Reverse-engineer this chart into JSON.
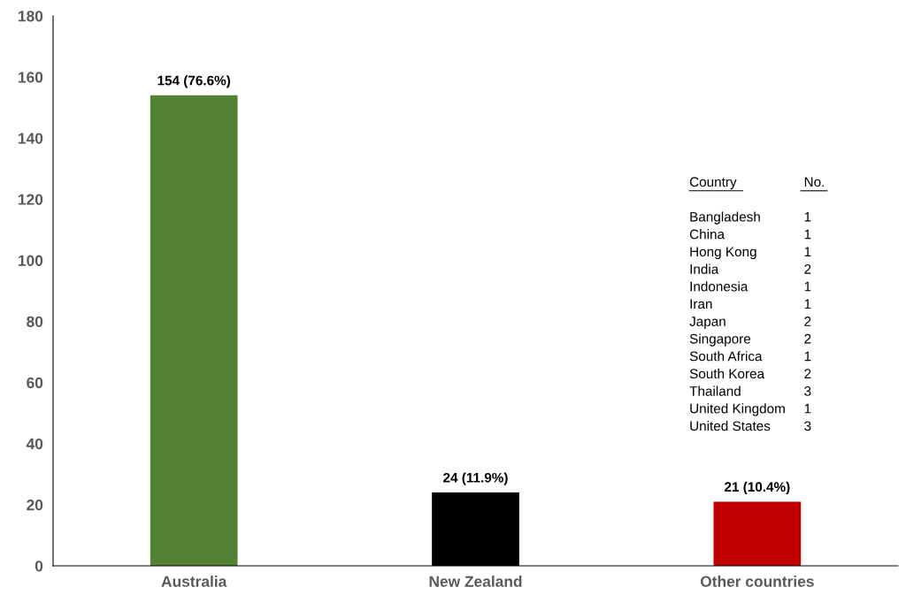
{
  "chart_data": {
    "type": "bar",
    "categories": [
      "Australia",
      "New Zealand",
      "Other countries"
    ],
    "values": [
      154,
      24,
      21
    ],
    "colors": [
      "#548235",
      "#000000",
      "#c00000"
    ],
    "value_labels": [
      "154 (76.6%)",
      "24 (11.9%)",
      "21 (10.4%)"
    ],
    "ylim": [
      0,
      180
    ],
    "yticks": [
      0,
      20,
      40,
      60,
      80,
      100,
      120,
      140,
      160,
      180
    ],
    "grid": false,
    "legend": false,
    "annotations": [
      "Country No.",
      "Bangladesh 1",
      "China 1",
      "Hong Kong 1",
      "India 2",
      "Indonesia 1",
      "Iran 1",
      "Japan 2",
      "Singapore 2",
      "South Africa 1",
      "South Korea 2",
      "Thailand 3",
      "United Kingdom 1",
      "United States 3"
    ]
  }
}
